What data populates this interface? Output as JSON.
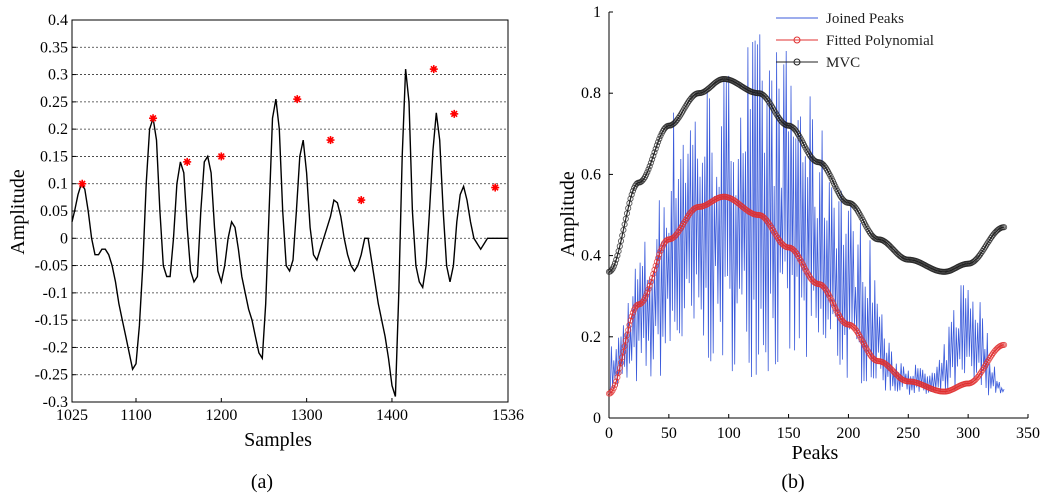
{
  "chart_data": [
    {
      "panel": "(a)",
      "type": "line",
      "xlabel": "Samples",
      "ylabel": "Amplitude",
      "xlim": [
        1025,
        1536
      ],
      "ylim": [
        -0.3,
        0.4
      ],
      "xticks": [
        "1025",
        "1100",
        "1200",
        "1300",
        "1400",
        "1536"
      ],
      "xtick_values": [
        1025,
        1100,
        1200,
        1300,
        1400,
        1536
      ],
      "yticks": [
        "0.4",
        "0.35",
        "0.3",
        "0.25",
        "0.2",
        "0.15",
        "0.1",
        "0.05",
        "0",
        "-0.05",
        "-0.1",
        "-0.15",
        "-0.2",
        "-0.25",
        "-0.3"
      ],
      "ytick_values": [
        0.4,
        0.35,
        0.3,
        0.25,
        0.2,
        0.15,
        0.1,
        0.05,
        0,
        -0.05,
        -0.1,
        -0.15,
        -0.2,
        -0.25,
        -0.3
      ],
      "grid": "horizontal dashed",
      "series": [
        {
          "color": "#000000",
          "x": [
            1025,
            1028,
            1032,
            1036,
            1040,
            1044,
            1048,
            1052,
            1056,
            1060,
            1064,
            1068,
            1072,
            1076,
            1080,
            1084,
            1088,
            1092,
            1096,
            1100,
            1104,
            1108,
            1112,
            1116,
            1120,
            1124,
            1128,
            1132,
            1136,
            1140,
            1144,
            1148,
            1152,
            1156,
            1160,
            1164,
            1168,
            1172,
            1176,
            1180,
            1184,
            1188,
            1192,
            1196,
            1200,
            1204,
            1208,
            1212,
            1216,
            1220,
            1224,
            1228,
            1232,
            1236,
            1240,
            1244,
            1248,
            1252,
            1256,
            1260,
            1264,
            1268,
            1272,
            1276,
            1280,
            1284,
            1288,
            1292,
            1296,
            1300,
            1304,
            1308,
            1312,
            1316,
            1320,
            1324,
            1328,
            1332,
            1336,
            1340,
            1344,
            1348,
            1352,
            1356,
            1360,
            1364,
            1368,
            1372,
            1376,
            1380,
            1384,
            1388,
            1392,
            1396,
            1400,
            1404,
            1408,
            1412,
            1416,
            1420,
            1424,
            1428,
            1432,
            1436,
            1440,
            1444,
            1448,
            1452,
            1456,
            1460,
            1464,
            1468,
            1472,
            1476,
            1480,
            1484,
            1488,
            1492,
            1496,
            1500,
            1504,
            1508,
            1512,
            1516,
            1520,
            1524,
            1528,
            1532,
            1536
          ],
          "y": [
            0.03,
            0.05,
            0.08,
            0.1,
            0.09,
            0.05,
            0.0,
            -0.03,
            -0.03,
            -0.02,
            -0.02,
            -0.03,
            -0.05,
            -0.08,
            -0.12,
            -0.15,
            -0.18,
            -0.21,
            -0.24,
            -0.23,
            -0.16,
            -0.05,
            0.1,
            0.2,
            0.22,
            0.18,
            0.05,
            -0.05,
            -0.07,
            -0.07,
            0.0,
            0.1,
            0.14,
            0.12,
            0.02,
            -0.06,
            -0.08,
            -0.07,
            0.05,
            0.14,
            0.15,
            0.12,
            0.02,
            -0.06,
            -0.08,
            -0.05,
            0.0,
            0.03,
            0.02,
            -0.02,
            -0.07,
            -0.1,
            -0.13,
            -0.15,
            -0.18,
            -0.21,
            -0.22,
            -0.12,
            0.05,
            0.22,
            0.255,
            0.2,
            0.05,
            -0.05,
            -0.06,
            -0.04,
            0.05,
            0.15,
            0.18,
            0.12,
            0.02,
            -0.03,
            -0.04,
            -0.02,
            0.0,
            0.02,
            0.04,
            0.07,
            0.065,
            0.04,
            0.0,
            -0.03,
            -0.05,
            -0.06,
            -0.05,
            -0.03,
            0.0,
            0.0,
            -0.04,
            -0.08,
            -0.12,
            -0.15,
            -0.18,
            -0.22,
            -0.27,
            -0.29,
            -0.1,
            0.15,
            0.31,
            0.25,
            0.05,
            -0.05,
            -0.08,
            -0.09,
            -0.05,
            0.05,
            0.16,
            0.23,
            0.18,
            0.05,
            -0.05,
            -0.08,
            -0.05,
            0.03,
            0.08,
            0.095,
            0.07,
            0.03,
            0.0,
            -0.01,
            -0.02,
            -0.01,
            0.0,
            0.0,
            0.0,
            0.0,
            0.0,
            0.0,
            0.0
          ]
        }
      ],
      "peaks": {
        "color": "#ff0000",
        "x": [
          1037,
          1120,
          1160,
          1200,
          1289,
          1328,
          1364,
          1449,
          1473,
          1521
        ],
        "y": [
          0.1,
          0.22,
          0.14,
          0.15,
          0.255,
          0.18,
          0.07,
          0.31,
          0.228,
          0.093
        ]
      }
    },
    {
      "panel": "(b)",
      "type": "line",
      "xlabel": "Peaks",
      "ylabel": "Amplitude",
      "xlim": [
        0,
        350
      ],
      "ylim": [
        0,
        1
      ],
      "xticks": [
        "0",
        "50",
        "100",
        "150",
        "200",
        "250",
        "300",
        "350"
      ],
      "xtick_values": [
        0,
        50,
        100,
        150,
        200,
        250,
        300,
        350
      ],
      "yticks": [
        "1",
        "0.8",
        "0.6",
        "0.4",
        "0.2",
        "0"
      ],
      "ytick_values": [
        1,
        0.8,
        0.6,
        0.4,
        0.2,
        0
      ],
      "grid": "off",
      "legend_position": "top-right",
      "series": [
        {
          "name": "Joined Peaks",
          "color": "#3b5bdb",
          "x_start": 1,
          "x_end": 330,
          "envelope_low": [
            0.06,
            0.08,
            0.12,
            0.12,
            0.1,
            0.1,
            0.1,
            0.08,
            0.06,
            0.05,
            0.05,
            0.06
          ],
          "envelope_high": [
            0.18,
            0.45,
            0.82,
            0.85,
            0.96,
            0.92,
            0.72,
            0.5,
            0.15,
            0.12,
            0.38,
            0.08
          ]
        },
        {
          "name": "Fitted Polynomial",
          "color": "#e03030",
          "marker": "o",
          "x": [
            0,
            25,
            50,
            75,
            96,
            125,
            150,
            175,
            200,
            225,
            250,
            280,
            300,
            330
          ],
          "y": [
            0.06,
            0.28,
            0.44,
            0.52,
            0.545,
            0.5,
            0.42,
            0.33,
            0.23,
            0.14,
            0.09,
            0.065,
            0.085,
            0.18
          ]
        },
        {
          "name": "MVC",
          "color": "#222222",
          "marker": "o",
          "x": [
            0,
            25,
            50,
            75,
            96,
            125,
            150,
            175,
            200,
            225,
            250,
            280,
            300,
            330
          ],
          "y": [
            0.36,
            0.58,
            0.72,
            0.8,
            0.835,
            0.8,
            0.72,
            0.63,
            0.53,
            0.44,
            0.39,
            0.36,
            0.38,
            0.47
          ]
        }
      ]
    }
  ],
  "captions": {
    "a": "(a)",
    "b": "(b)"
  }
}
